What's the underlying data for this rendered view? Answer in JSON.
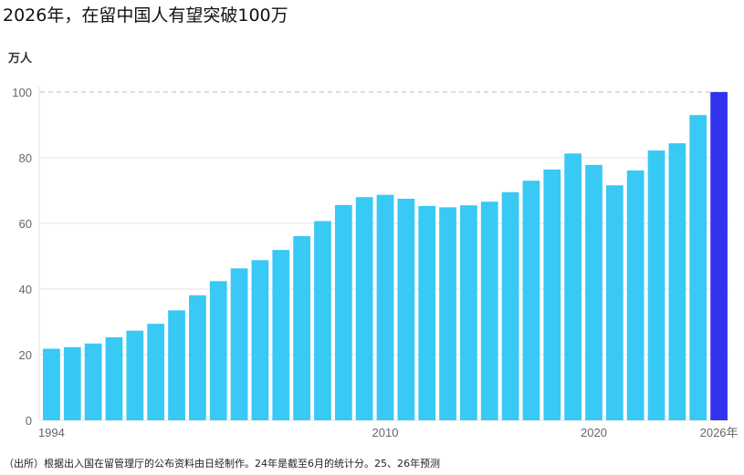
{
  "title": "2026年，在留中国人有望突破100万",
  "unit_label": "万人",
  "source": "（出所）根据出入国在留管理厅的公布资料由日经制作。24年是截至6月的统计分。25、26年预测",
  "colors": {
    "bar": "#38c9f5",
    "highlight": "#3333ee",
    "grid": "#e6e6e6",
    "dashed": "#bbbbbb"
  },
  "chart_data": {
    "type": "bar",
    "categories": [
      "1994",
      "1995",
      "1996",
      "1997",
      "1998",
      "1999",
      "2000",
      "2001",
      "2002",
      "2003",
      "2004",
      "2005",
      "2006",
      "2007",
      "2008",
      "2009",
      "2010",
      "2011",
      "2012",
      "2013",
      "2014",
      "2015",
      "2016",
      "2017",
      "2018",
      "2019",
      "2020",
      "2021",
      "2022",
      "2023",
      "2024",
      "2025",
      "2026年"
    ],
    "values": [
      21.8,
      22.3,
      23.4,
      25.3,
      27.3,
      29.4,
      33.5,
      38.1,
      42.4,
      46.3,
      48.8,
      51.9,
      56.1,
      60.7,
      65.6,
      68.0,
      68.7,
      67.5,
      65.3,
      64.9,
      65.5,
      66.6,
      69.5,
      73.0,
      76.4,
      81.3,
      77.8,
      71.6,
      76.1,
      82.2,
      84.4,
      93.0,
      100.0
    ],
    "highlight_index": 32,
    "xticks_shown": [
      "1994",
      "2010",
      "2020",
      "2026年"
    ],
    "yticks": [
      0,
      20,
      40,
      60,
      80,
      100
    ],
    "ylim": [
      0,
      100
    ],
    "xlabel": "",
    "ylabel": "万人",
    "reference_line": 100,
    "grid": true
  }
}
